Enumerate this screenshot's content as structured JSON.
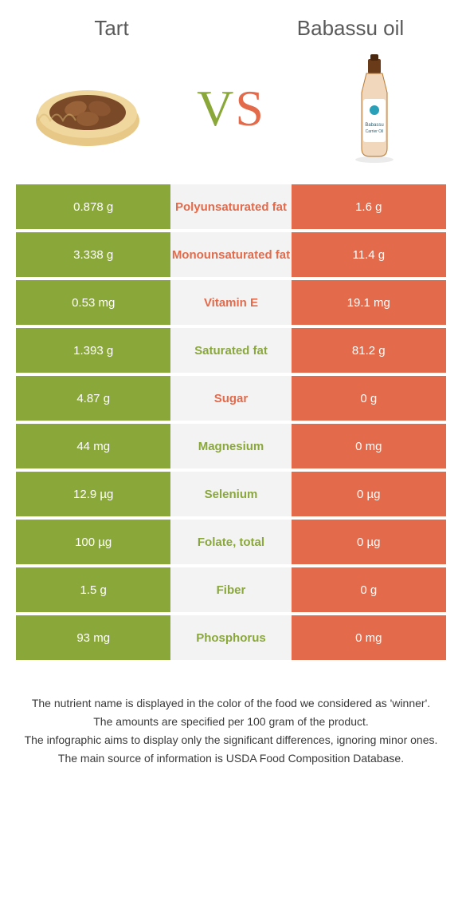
{
  "colors": {
    "green": "#8aa83a",
    "orange": "#e36a4a",
    "mid_bg": "#f3f3f3",
    "white": "#ffffff",
    "text_dark": "#3a3a3a",
    "header_text": "#5a5a5a"
  },
  "header": {
    "left_title": "Tart",
    "right_title": "Babassu oil",
    "vs_v": "V",
    "vs_s": "S"
  },
  "images": {
    "left_alt": "tart-image",
    "right_alt": "babassu-oil-bottle"
  },
  "table": {
    "rows": [
      {
        "left": "0.878 g",
        "label": "Polyunsaturated fat",
        "right": "1.6 g",
        "winner": "right"
      },
      {
        "left": "3.338 g",
        "label": "Monounsaturated fat",
        "right": "11.4 g",
        "winner": "right"
      },
      {
        "left": "0.53 mg",
        "label": "Vitamin E",
        "right": "19.1 mg",
        "winner": "right"
      },
      {
        "left": "1.393 g",
        "label": "Saturated fat",
        "right": "81.2 g",
        "winner": "left"
      },
      {
        "left": "4.87 g",
        "label": "Sugar",
        "right": "0 g",
        "winner": "right"
      },
      {
        "left": "44 mg",
        "label": "Magnesium",
        "right": "0 mg",
        "winner": "left"
      },
      {
        "left": "12.9 µg",
        "label": "Selenium",
        "right": "0 µg",
        "winner": "left"
      },
      {
        "left": "100 µg",
        "label": "Folate, total",
        "right": "0 µg",
        "winner": "left"
      },
      {
        "left": "1.5 g",
        "label": "Fiber",
        "right": "0 g",
        "winner": "left"
      },
      {
        "left": "93 mg",
        "label": "Phosphorus",
        "right": "0 mg",
        "winner": "left"
      }
    ]
  },
  "footer": {
    "line1": "The nutrient name is displayed in the color of the food we considered as 'winner'.",
    "line2": "The amounts are specified per 100 gram of the product.",
    "line3": "The infographic aims to display only the significant differences, ignoring minor ones.",
    "line4": "The main source of information is USDA Food Composition Database."
  }
}
